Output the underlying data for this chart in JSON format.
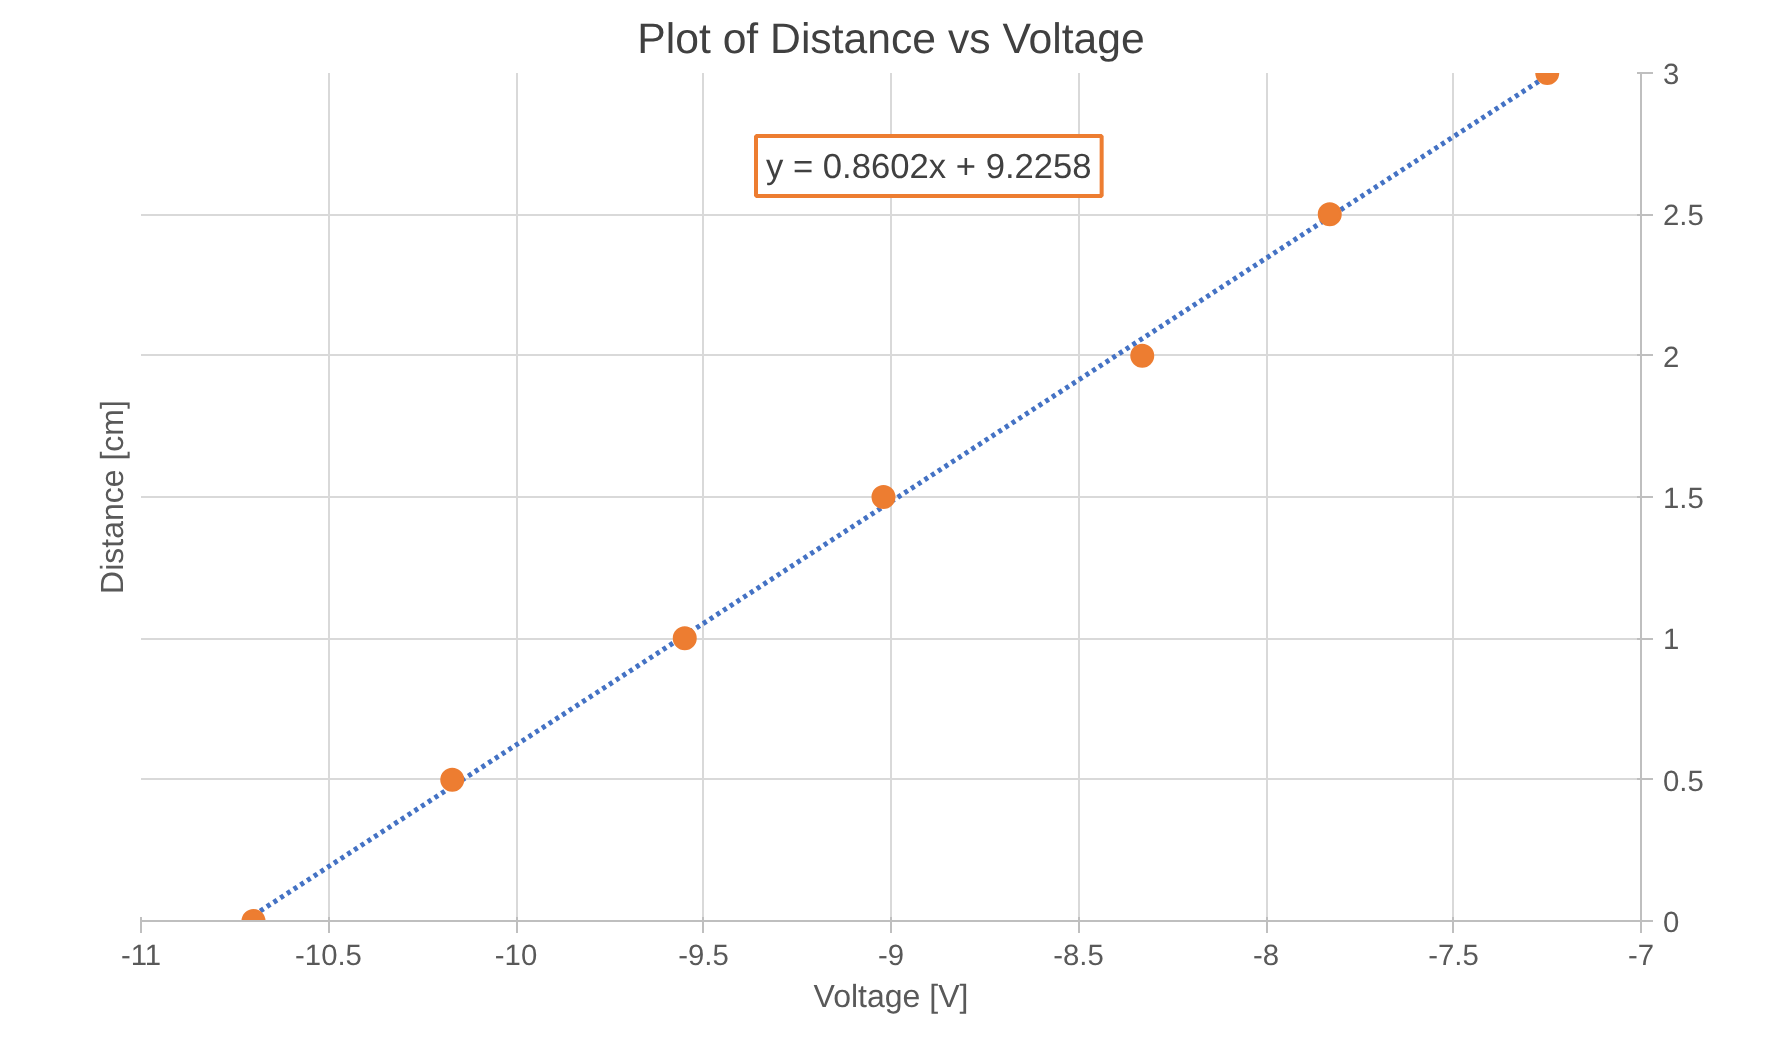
{
  "chart_data": {
    "type": "scatter",
    "title": "Plot of Distance vs Voltage",
    "xlabel": "Voltage [V]",
    "ylabel": "Distance [cm]",
    "series": [
      {
        "color": "#ed7d31",
        "marker": "circle",
        "x": [
          -10.7,
          -10.17,
          -9.55,
          -9.02,
          -8.33,
          -7.83,
          -7.25
        ],
        "values": [
          0,
          0.5,
          1,
          1.5,
          2,
          2.5,
          3
        ]
      },
      {
        "type": "line",
        "color": "#4472c4",
        "marker": "none",
        "line_style": "dotted",
        "x": [
          -10.7,
          -7.25
        ],
        "values": [
          0.02,
          2.99
        ]
      }
    ],
    "annotations": [
      "y = 0.8602x + 9.2258"
    ],
    "xlim": [
      -11,
      -7
    ],
    "xticks": [
      -11,
      -10.5,
      -10,
      -9.5,
      -9,
      -8.5,
      -8,
      -7.5,
      -7
    ],
    "ylim": [
      0,
      3
    ],
    "yticks": [
      0,
      0.5,
      1,
      1.5,
      2,
      2.5,
      3
    ],
    "grid": true
  }
}
